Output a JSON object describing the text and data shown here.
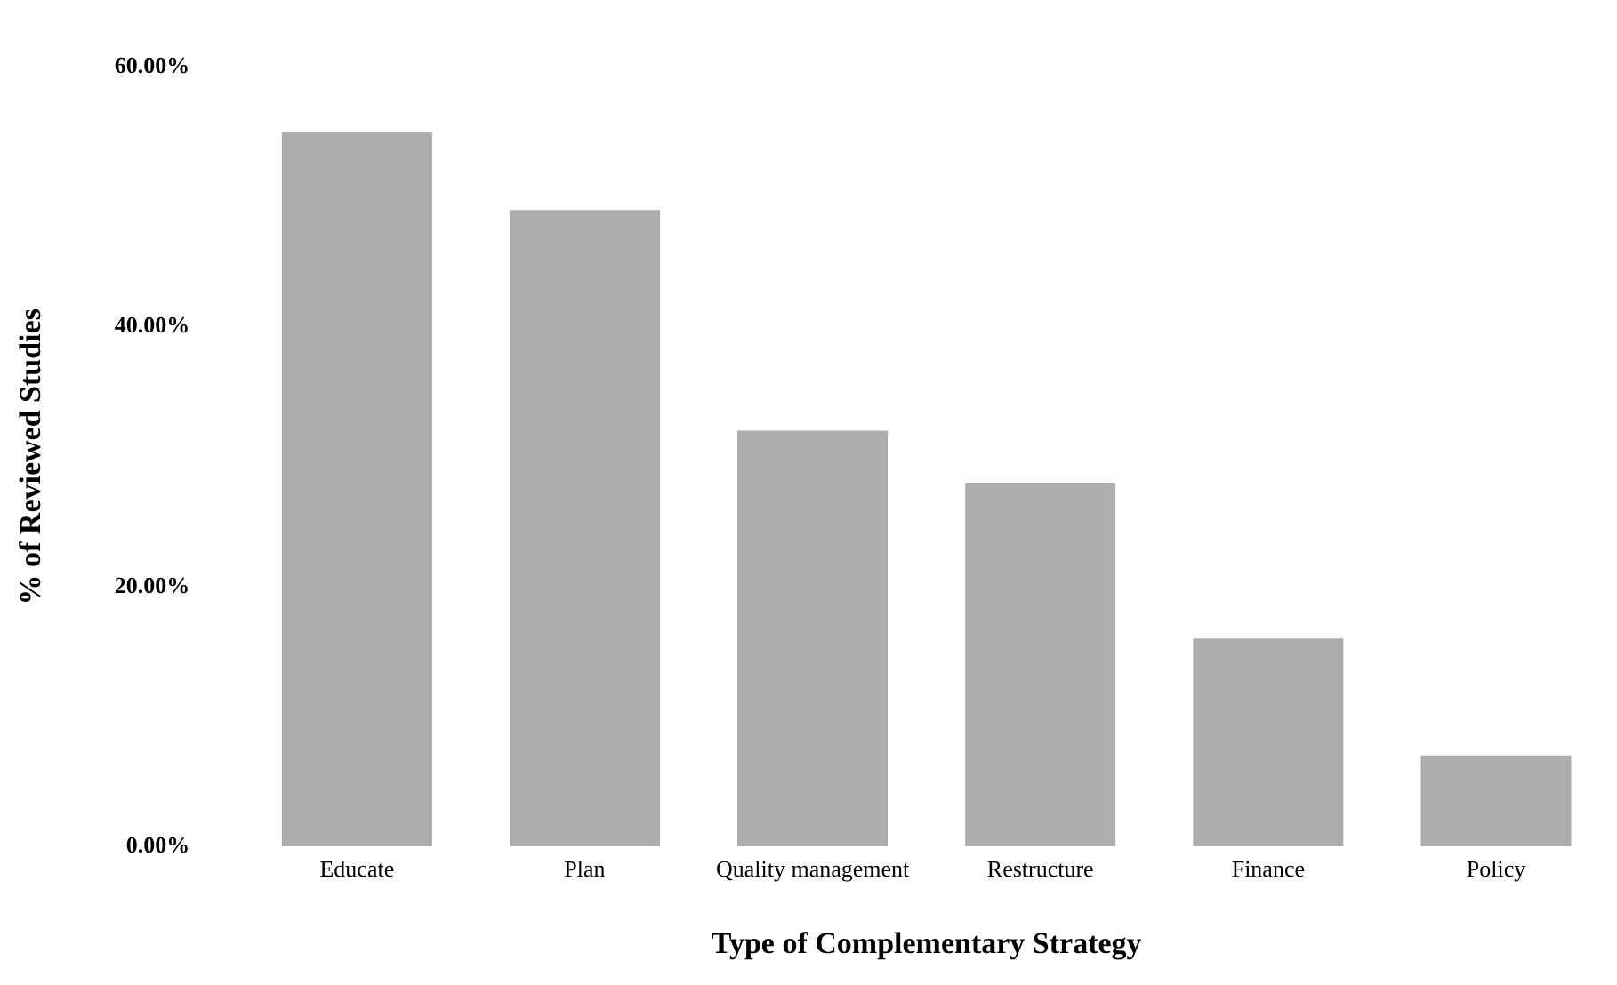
{
  "chart_data": {
    "type": "bar",
    "xlabel": "Type of Complementary Strategy",
    "ylabel": "% of Reviewed Studies",
    "categories": [
      "Educate",
      "Plan",
      "Quality management",
      "Restructure",
      "Finance",
      "Policy"
    ],
    "values": [
      55,
      49,
      32,
      28,
      16,
      7
    ],
    "color": "#adadad",
    "ylim": [
      0,
      60
    ],
    "yticks": [
      {
        "value": 0,
        "label": "0.00%"
      },
      {
        "value": 20,
        "label": "20.00%"
      },
      {
        "value": 40,
        "label": "40.00%"
      },
      {
        "value": 60,
        "label": "60.00%"
      }
    ],
    "grid": false,
    "legend": false
  }
}
